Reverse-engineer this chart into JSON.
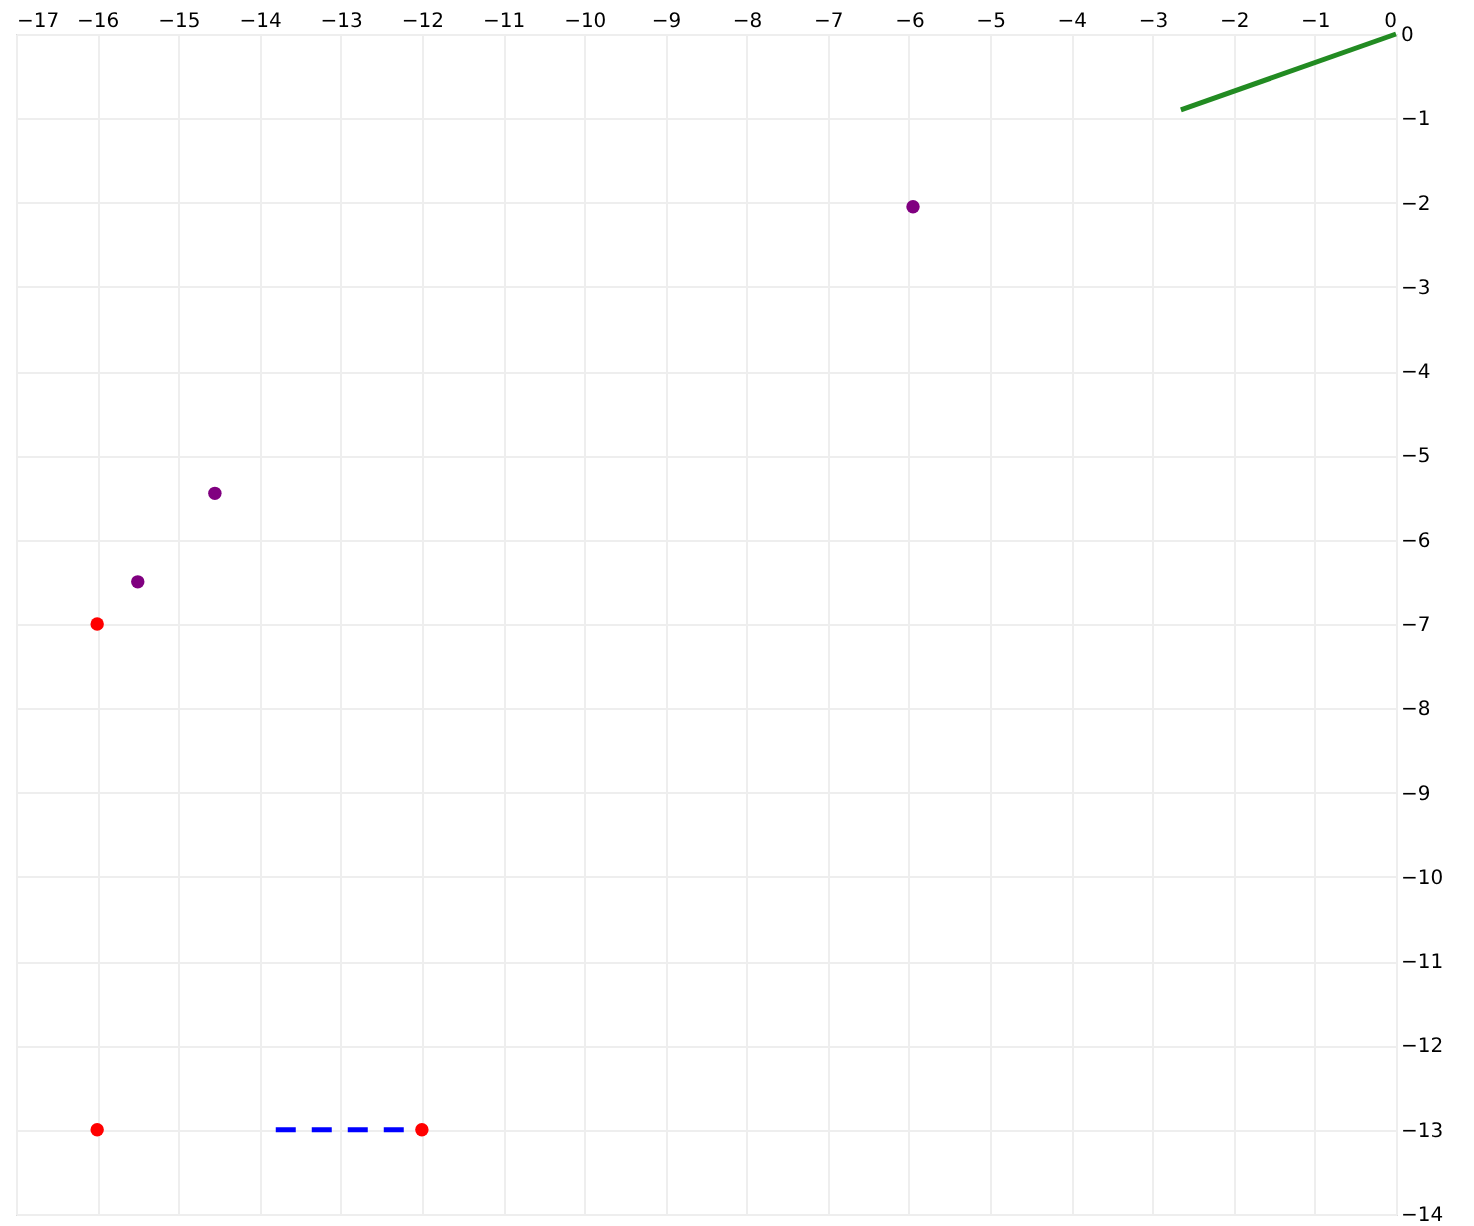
{
  "chart_data": {
    "type": "scatter",
    "xlim": [
      -17,
      0
    ],
    "ylim": [
      -14,
      0
    ],
    "xticks": [
      -17,
      -16,
      -15,
      -14,
      -13,
      -12,
      -11,
      -10,
      -9,
      -8,
      -7,
      -6,
      -5,
      -4,
      -3,
      -2,
      -1,
      0
    ],
    "yticks": [
      0,
      -1,
      -2,
      -3,
      -4,
      -5,
      -6,
      -7,
      -8,
      -9,
      -10,
      -11,
      -12,
      -13,
      -14
    ],
    "grid": true,
    "series": [
      {
        "type": "line",
        "color": "#228b22",
        "line_style": "solid",
        "marker": "none",
        "x": [
          -2.65,
          0
        ],
        "values": [
          -0.9,
          0
        ]
      },
      {
        "type": "line",
        "color": "#0000ff",
        "line_style": "dashed",
        "marker": "none",
        "x": [
          -13.8,
          -12
        ],
        "values": [
          -13,
          -13
        ]
      },
      {
        "color": "#800080",
        "marker": "circle",
        "x": [
          -5.95,
          -14.55,
          -15.5
        ],
        "values": [
          -2.05,
          -5.45,
          -6.5
        ]
      },
      {
        "color": "#ff0000",
        "marker": "circle",
        "x": [
          -16,
          -16,
          -12
        ],
        "values": [
          -7,
          -13,
          -13
        ]
      }
    ]
  }
}
